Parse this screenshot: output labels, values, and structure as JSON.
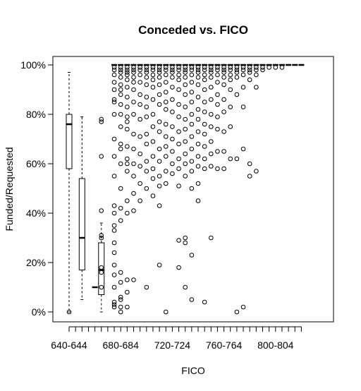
{
  "chart_data": {
    "type": "box",
    "title": "Conceded vs. FICO",
    "xlabel": "FICO",
    "ylabel": "Funded/Requested",
    "ylim": [
      0,
      100
    ],
    "yticks": [
      "0%",
      "20%",
      "40%",
      "60%",
      "80%",
      "100%"
    ],
    "ytick_values": [
      0,
      20,
      40,
      60,
      80,
      100
    ],
    "xtick_labels": [
      "640-644",
      "680-684",
      "720-724",
      "760-764",
      "800-804"
    ],
    "xtick_label_groups": [
      1,
      9,
      17,
      25,
      33
    ],
    "group_count": 37,
    "boxes": [
      {
        "group": 1,
        "whisker_low": 0,
        "q1": 58,
        "median": 76,
        "q3": 80,
        "whisker_high": 97,
        "outliers": [
          0
        ]
      },
      {
        "group": 3,
        "whisker_low": 5,
        "q1": 17,
        "median": 30,
        "q3": 54,
        "whisker_high": 79,
        "outliers": []
      },
      {
        "group": 5,
        "whisker_low": 10,
        "q1": 10,
        "median": 10,
        "q3": 10,
        "whisker_high": 10,
        "outliers": []
      },
      {
        "group": 6,
        "whisker_low": 0,
        "q1": 7,
        "median": 17,
        "q3": 28,
        "whisker_high": 36,
        "outliers": [
          77,
          78,
          63,
          41,
          31,
          30,
          18,
          16,
          10
        ]
      },
      {
        "group": 8,
        "whisker_low": 100,
        "q1": 100,
        "median": 100,
        "q3": 100,
        "whisker_high": 100,
        "outliers": [
          99,
          98,
          96,
          93,
          90,
          86,
          85,
          80,
          70,
          63,
          55,
          43,
          40,
          35,
          33,
          28,
          24,
          19,
          15,
          10,
          4,
          3,
          2
        ]
      },
      {
        "group": 9,
        "whisker_low": 100,
        "q1": 100,
        "median": 100,
        "q3": 100,
        "whisker_high": 100,
        "outliers": [
          99,
          98,
          97,
          95,
          92,
          90,
          88,
          84,
          80,
          75,
          68,
          66,
          60,
          50,
          42,
          37,
          16,
          12,
          6,
          5,
          2,
          0
        ]
      },
      {
        "group": 10,
        "whisker_low": 100,
        "q1": 100,
        "median": 100,
        "q3": 100,
        "whisker_high": 100,
        "outliers": [
          99,
          98,
          97,
          96,
          94,
          91,
          87,
          83,
          79,
          77,
          74,
          67,
          62,
          60,
          57,
          45,
          40,
          13,
          8,
          2
        ]
      },
      {
        "group": 11,
        "whisker_low": 100,
        "q1": 100,
        "median": 100,
        "q3": 100,
        "whisker_high": 100,
        "outliers": [
          99,
          98,
          97,
          95,
          93,
          90,
          85,
          80,
          72,
          66,
          60,
          55,
          48,
          41,
          13
        ]
      },
      {
        "group": 12,
        "whisker_low": 100,
        "q1": 100,
        "median": 100,
        "q3": 100,
        "whisker_high": 100,
        "outliers": [
          99,
          98,
          96,
          93,
          88,
          84,
          78,
          71,
          64,
          59,
          52,
          45
        ]
      },
      {
        "group": 13,
        "whisker_low": 100,
        "q1": 100,
        "median": 100,
        "q3": 100,
        "whisker_high": 100,
        "outliers": [
          99,
          98,
          97,
          95,
          92,
          87,
          83,
          79,
          72,
          68,
          61,
          57,
          50,
          10
        ]
      },
      {
        "group": 14,
        "whisker_low": 100,
        "q1": 100,
        "median": 100,
        "q3": 100,
        "whisker_high": 100,
        "outliers": [
          99,
          98,
          96,
          94,
          91,
          86,
          80,
          75,
          69,
          63,
          58,
          54,
          47
        ]
      },
      {
        "group": 15,
        "whisker_low": 100,
        "q1": 100,
        "median": 100,
        "q3": 100,
        "whisker_high": 100,
        "outliers": [
          99,
          98,
          97,
          95,
          92,
          88,
          84,
          77,
          73,
          66,
          61,
          55,
          51,
          43,
          19
        ]
      },
      {
        "group": 16,
        "whisker_low": 100,
        "q1": 100,
        "median": 100,
        "q3": 100,
        "whisker_high": 100,
        "outliers": [
          99,
          98,
          96,
          93,
          89,
          85,
          82,
          76,
          71,
          67,
          63,
          57,
          52,
          0
        ]
      },
      {
        "group": 17,
        "whisker_low": 100,
        "q1": 100,
        "median": 100,
        "q3": 100,
        "whisker_high": 100,
        "outliers": [
          99,
          98,
          97,
          95,
          91,
          86,
          81,
          75,
          70,
          65,
          60,
          56
        ]
      },
      {
        "group": 18,
        "whisker_low": 100,
        "q1": 100,
        "median": 100,
        "q3": 100,
        "whisker_high": 100,
        "outliers": [
          99,
          98,
          96,
          94,
          90,
          84,
          79,
          73,
          68,
          62,
          58,
          51,
          29,
          18
        ]
      },
      {
        "group": 19,
        "whisker_low": 100,
        "q1": 100,
        "median": 100,
        "q3": 100,
        "whisker_high": 100,
        "outliers": [
          99,
          98,
          97,
          95,
          92,
          88,
          83,
          78,
          74,
          69,
          64,
          60,
          55,
          30,
          28,
          10
        ]
      },
      {
        "group": 20,
        "whisker_low": 100,
        "q1": 100,
        "median": 100,
        "q3": 100,
        "whisker_high": 100,
        "outliers": [
          99,
          98,
          96,
          93,
          89,
          85,
          80,
          76,
          71,
          66,
          61,
          57,
          50,
          23,
          5
        ]
      },
      {
        "group": 21,
        "whisker_low": 100,
        "q1": 100,
        "median": 100,
        "q3": 100,
        "whisker_high": 100,
        "outliers": [
          99,
          98,
          97,
          95,
          92,
          87,
          82,
          78,
          73,
          68,
          63,
          59,
          52,
          45
        ]
      },
      {
        "group": 22,
        "whisker_low": 100,
        "q1": 100,
        "median": 100,
        "q3": 100,
        "whisker_high": 100,
        "outliers": [
          99,
          98,
          96,
          94,
          90,
          85,
          81,
          76,
          72,
          67,
          62,
          58,
          4
        ]
      },
      {
        "group": 23,
        "whisker_low": 100,
        "q1": 100,
        "median": 100,
        "q3": 100,
        "whisker_high": 100,
        "outliers": [
          99,
          98,
          97,
          95,
          91,
          86,
          80,
          75,
          69,
          64,
          59,
          30
        ]
      },
      {
        "group": 24,
        "whisker_low": 100,
        "q1": 100,
        "median": 100,
        "q3": 100,
        "whisker_high": 100,
        "outliers": [
          99,
          98,
          96,
          93,
          88,
          84,
          79,
          74,
          65,
          58
        ]
      },
      {
        "group": 25,
        "whisker_low": 100,
        "q1": 100,
        "median": 100,
        "q3": 100,
        "whisker_high": 100,
        "outliers": [
          99,
          98,
          97,
          95,
          92,
          86,
          81,
          73,
          65,
          58
        ]
      },
      {
        "group": 26,
        "whisker_low": 100,
        "q1": 100,
        "median": 100,
        "q3": 100,
        "whisker_high": 100,
        "outliers": [
          99,
          98,
          96,
          94,
          90,
          83,
          75,
          62
        ]
      },
      {
        "group": 27,
        "whisker_low": 100,
        "q1": 100,
        "median": 100,
        "q3": 100,
        "whisker_high": 100,
        "outliers": [
          99,
          98,
          97,
          95,
          88,
          62,
          0
        ]
      },
      {
        "group": 28,
        "whisker_low": 100,
        "q1": 100,
        "median": 100,
        "q3": 100,
        "whisker_high": 100,
        "outliers": [
          99,
          98,
          96,
          91,
          83,
          66,
          2
        ]
      },
      {
        "group": 29,
        "whisker_low": 100,
        "q1": 100,
        "median": 100,
        "q3": 100,
        "whisker_high": 100,
        "outliers": [
          99,
          98,
          97,
          94,
          60,
          55
        ]
      },
      {
        "group": 30,
        "whisker_low": 100,
        "q1": 100,
        "median": 100,
        "q3": 100,
        "whisker_high": 100,
        "outliers": [
          99,
          98,
          96,
          91,
          57
        ]
      },
      {
        "group": 31,
        "whisker_low": 100,
        "q1": 100,
        "median": 100,
        "q3": 100,
        "whisker_high": 100,
        "outliers": [
          99,
          98
        ]
      },
      {
        "group": 32,
        "whisker_low": 100,
        "q1": 100,
        "median": 100,
        "q3": 100,
        "whisker_high": 100,
        "outliers": [
          99
        ]
      },
      {
        "group": 33,
        "whisker_low": 100,
        "q1": 100,
        "median": 100,
        "q3": 100,
        "whisker_high": 100,
        "outliers": [
          99
        ]
      },
      {
        "group": 34,
        "whisker_low": 100,
        "q1": 100,
        "median": 100,
        "q3": 100,
        "whisker_high": 100,
        "outliers": [
          99
        ]
      },
      {
        "group": 35,
        "whisker_low": 100,
        "q1": 100,
        "median": 100,
        "q3": 100,
        "whisker_high": 100,
        "outliers": []
      },
      {
        "group": 36,
        "whisker_low": 100,
        "q1": 100,
        "median": 100,
        "q3": 100,
        "whisker_high": 100,
        "outliers": []
      },
      {
        "group": 37,
        "whisker_low": 100,
        "q1": 100,
        "median": 100,
        "q3": 100,
        "whisker_high": 100,
        "outliers": []
      }
    ],
    "grid": false,
    "legend": "none"
  }
}
